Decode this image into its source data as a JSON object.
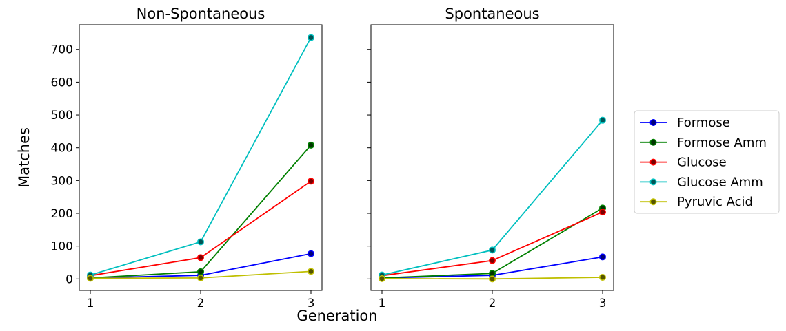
{
  "chart_data": {
    "type": "line",
    "xlabel": "Generation",
    "ylabel": "Matches",
    "x": [
      1,
      2,
      3
    ],
    "xticks": [
      "1",
      "2",
      "3"
    ],
    "ylim": [
      -35,
      775
    ],
    "yticks": [
      "0",
      "100",
      "200",
      "300",
      "400",
      "500",
      "600",
      "700"
    ],
    "sharey": true,
    "grid": false,
    "legend_position": "right-outside",
    "series_styles": [
      {
        "name": "Formose",
        "color": "#0000ff",
        "marker_face": "#00007a"
      },
      {
        "name": "Formose Amm",
        "color": "#008000",
        "marker_face": "#003600"
      },
      {
        "name": "Glucose",
        "color": "#ff0000",
        "marker_face": "#7a0000"
      },
      {
        "name": "Glucose Amm",
        "color": "#00bfbf",
        "marker_face": "#005555"
      },
      {
        "name": "Pyruvic Acid",
        "color": "#bfbf00",
        "marker_face": "#555500"
      }
    ],
    "panels": [
      {
        "title": "Non-Spontaneous",
        "series": [
          {
            "name": "Formose",
            "values": [
              3,
              11,
              77
            ]
          },
          {
            "name": "Formose Amm",
            "values": [
              3,
              22,
              408
            ]
          },
          {
            "name": "Glucose",
            "values": [
              10,
              65,
              298
            ]
          },
          {
            "name": "Glucose Amm",
            "values": [
              12,
              113,
              736
            ]
          },
          {
            "name": "Pyruvic Acid",
            "values": [
              2,
              3,
              23
            ]
          }
        ]
      },
      {
        "title": "Spontaneous",
        "series": [
          {
            "name": "Formose",
            "values": [
              3,
              11,
              67
            ]
          },
          {
            "name": "Formose Amm",
            "values": [
              3,
              17,
              216
            ]
          },
          {
            "name": "Glucose",
            "values": [
              10,
              56,
              204
            ]
          },
          {
            "name": "Glucose Amm",
            "values": [
              12,
              88,
              484
            ]
          },
          {
            "name": "Pyruvic Acid",
            "values": [
              1,
              0,
              5
            ]
          }
        ]
      }
    ]
  }
}
